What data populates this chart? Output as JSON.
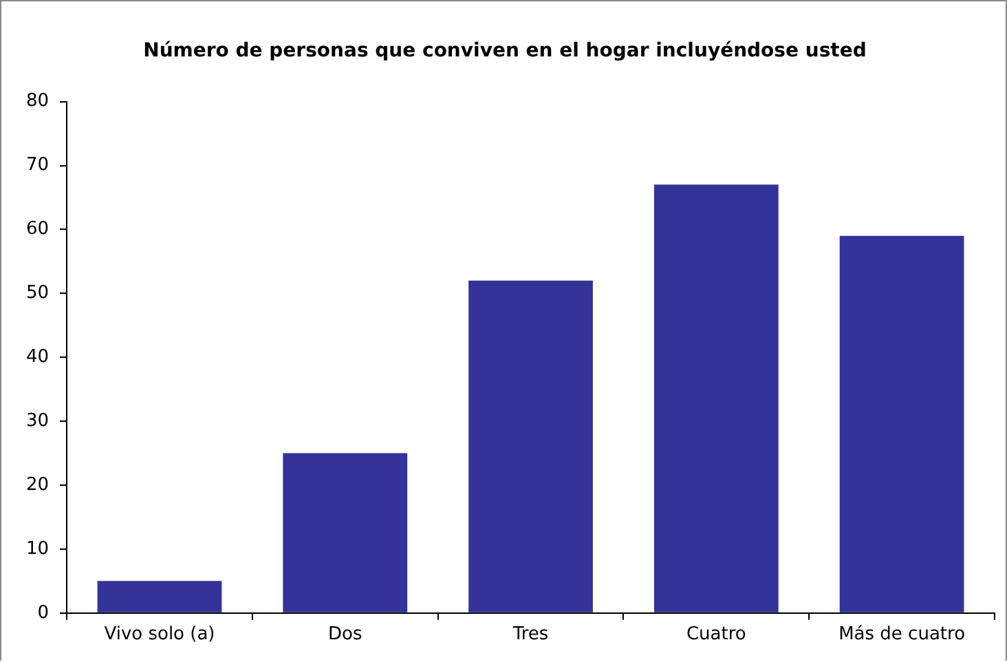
{
  "chart_data": {
    "type": "bar",
    "title": "Número de personas que conviven en el hogar incluyéndose usted",
    "categories": [
      "Vivo solo (a)",
      "Dos",
      "Tres",
      "Cuatro",
      "Más de cuatro"
    ],
    "values": [
      5,
      25,
      52,
      67,
      59
    ],
    "color": "#333399",
    "ylim": [
      0,
      80
    ],
    "yticks": [
      0,
      10,
      20,
      30,
      40,
      50,
      60,
      70,
      80
    ],
    "grid": false,
    "legend": false
  }
}
